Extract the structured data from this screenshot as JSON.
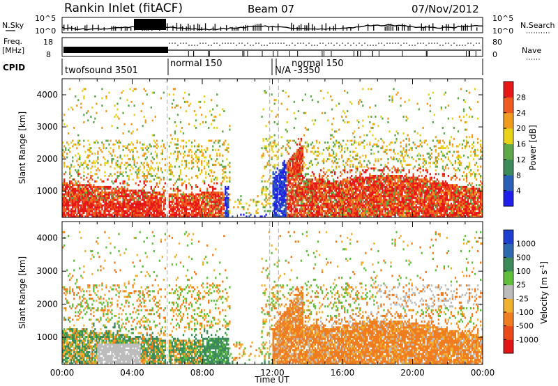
{
  "header": {
    "station": "Rankin Inlet (fitACF)",
    "beam": "Beam 07",
    "date": "07/Nov/2012"
  },
  "noise_panel": {
    "left_label": "N.Sky",
    "right_label": "N.Search",
    "left_ticks": [
      "10^5",
      "10^0"
    ],
    "right_ticks": [
      "10^5",
      "10^0"
    ]
  },
  "freq_panel": {
    "left_label_1": "Freq.",
    "left_label_2": "[MHz]",
    "left_ticks": [
      "18",
      "8"
    ],
    "right_label": "Nave",
    "right_ticks": [
      "80",
      "0"
    ]
  },
  "cpid_panel": {
    "label": "CPID",
    "segments": [
      "twofsound 3501",
      "normal 150",
      "N/A -3350",
      "normal 150"
    ]
  },
  "chart_data": [
    {
      "type": "heatmap",
      "quantity": "power",
      "ylabel": "Slant Range [km]",
      "xlabel": "",
      "xlim": [
        "00:00",
        "00:00"
      ],
      "ylim": [
        180,
        4500
      ],
      "y_ticks": [
        1000,
        2000,
        3000,
        4000
      ],
      "colorbar": {
        "label": "Power [dB]",
        "ticks": [
          "4",
          "8",
          "12",
          "16",
          "20",
          "24",
          "28"
        ],
        "colors": [
          "#1f1fe8",
          "#2a5fb8",
          "#3a8a5a",
          "#5fa84a",
          "#e8d21a",
          "#f09a1e",
          "#ee5a20",
          "#e51717"
        ]
      }
    },
    {
      "type": "heatmap",
      "quantity": "velocity",
      "ylabel": "Slant Range [km]",
      "xlabel": "Time UT",
      "x_ticks": [
        "00:00",
        "04:00",
        "08:00",
        "12:00",
        "16:00",
        "20:00",
        "00:00"
      ],
      "ylim": [
        180,
        4500
      ],
      "y_ticks": [
        1000,
        2000,
        3000,
        4000
      ],
      "colorbar": {
        "label": "Velocity [m s^-1]",
        "ticks": [
          "1000",
          "500",
          "100",
          "25",
          "-25",
          "-100",
          "-500",
          "-1000"
        ],
        "colors": [
          "#1f3fd0",
          "#2f6ab0",
          "#3a8a5a",
          "#5fbf3a",
          "#bcbcbc",
          "#f0b030",
          "#f07c20",
          "#e84a1a",
          "#e01515"
        ]
      }
    }
  ]
}
